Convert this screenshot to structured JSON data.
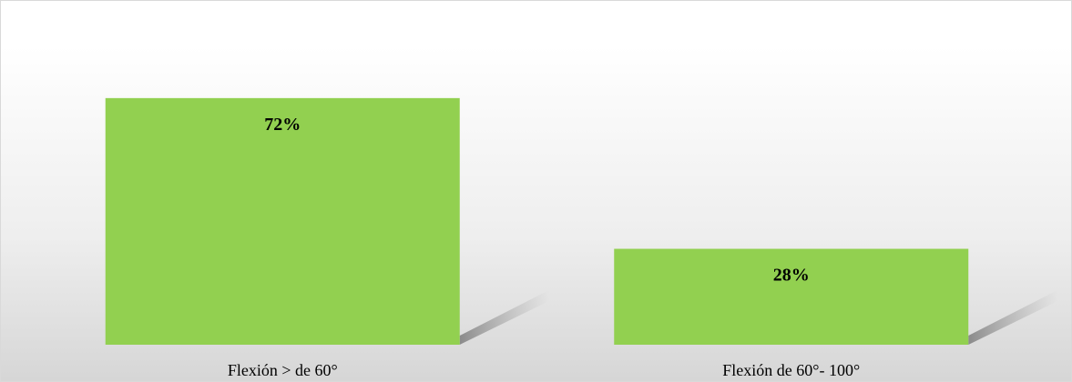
{
  "chart_data": {
    "type": "bar",
    "categories": [
      "Flexión > de 60°",
      "Flexión de 60°- 100°"
    ],
    "values": [
      72,
      28
    ],
    "data_labels": [
      "72%",
      "28%"
    ],
    "title": "",
    "xlabel": "",
    "ylabel": "",
    "ylim": [
      0,
      100
    ],
    "grid": false,
    "legend": "none",
    "colors": {
      "bar": "#92d050",
      "shadow": "#7f7f7f"
    }
  }
}
